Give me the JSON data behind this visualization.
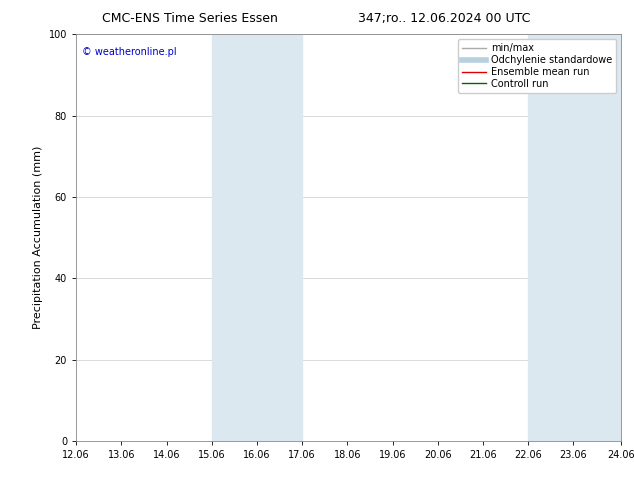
{
  "title_left": "CMC-ENS Time Series Essen",
  "title_right": "347;ro.. 12.06.2024 00 UTC",
  "ylabel": "Precipitation Accumulation (mm)",
  "watermark": "© weatheronline.pl",
  "watermark_color": "#0000cc",
  "ylim": [
    0,
    100
  ],
  "x_tick_positions": [
    12,
    13,
    14,
    15,
    16,
    17,
    18,
    19,
    20,
    21,
    22,
    23,
    24.06
  ],
  "x_ticks": [
    "12.06",
    "13.06",
    "14.06",
    "15.06",
    "16.06",
    "17.06",
    "18.06",
    "19.06",
    "20.06",
    "21.06",
    "22.06",
    "23.06",
    "24.06"
  ],
  "xlim": [
    12.0,
    24.06
  ],
  "shaded_bands": [
    {
      "x_start": 15.0,
      "x_end": 17.0
    },
    {
      "x_start": 22.0,
      "x_end": 24.06
    }
  ],
  "band_color": "#dce8f0",
  "legend_entries": [
    {
      "label": "min/max",
      "color": "#aaaaaa",
      "lw": 1.0
    },
    {
      "label": "Odchylenie standardowe",
      "color": "#b8cfe0",
      "lw": 4
    },
    {
      "label": "Ensemble mean run",
      "color": "#dd0000",
      "lw": 1.0
    },
    {
      "label": "Controll run",
      "color": "#006600",
      "lw": 1.0
    }
  ],
  "bg_color": "#ffffff",
  "plot_bg_color": "#ffffff",
  "title_fontsize": 9,
  "tick_fontsize": 7,
  "ylabel_fontsize": 8,
  "watermark_fontsize": 7,
  "legend_fontsize": 7
}
